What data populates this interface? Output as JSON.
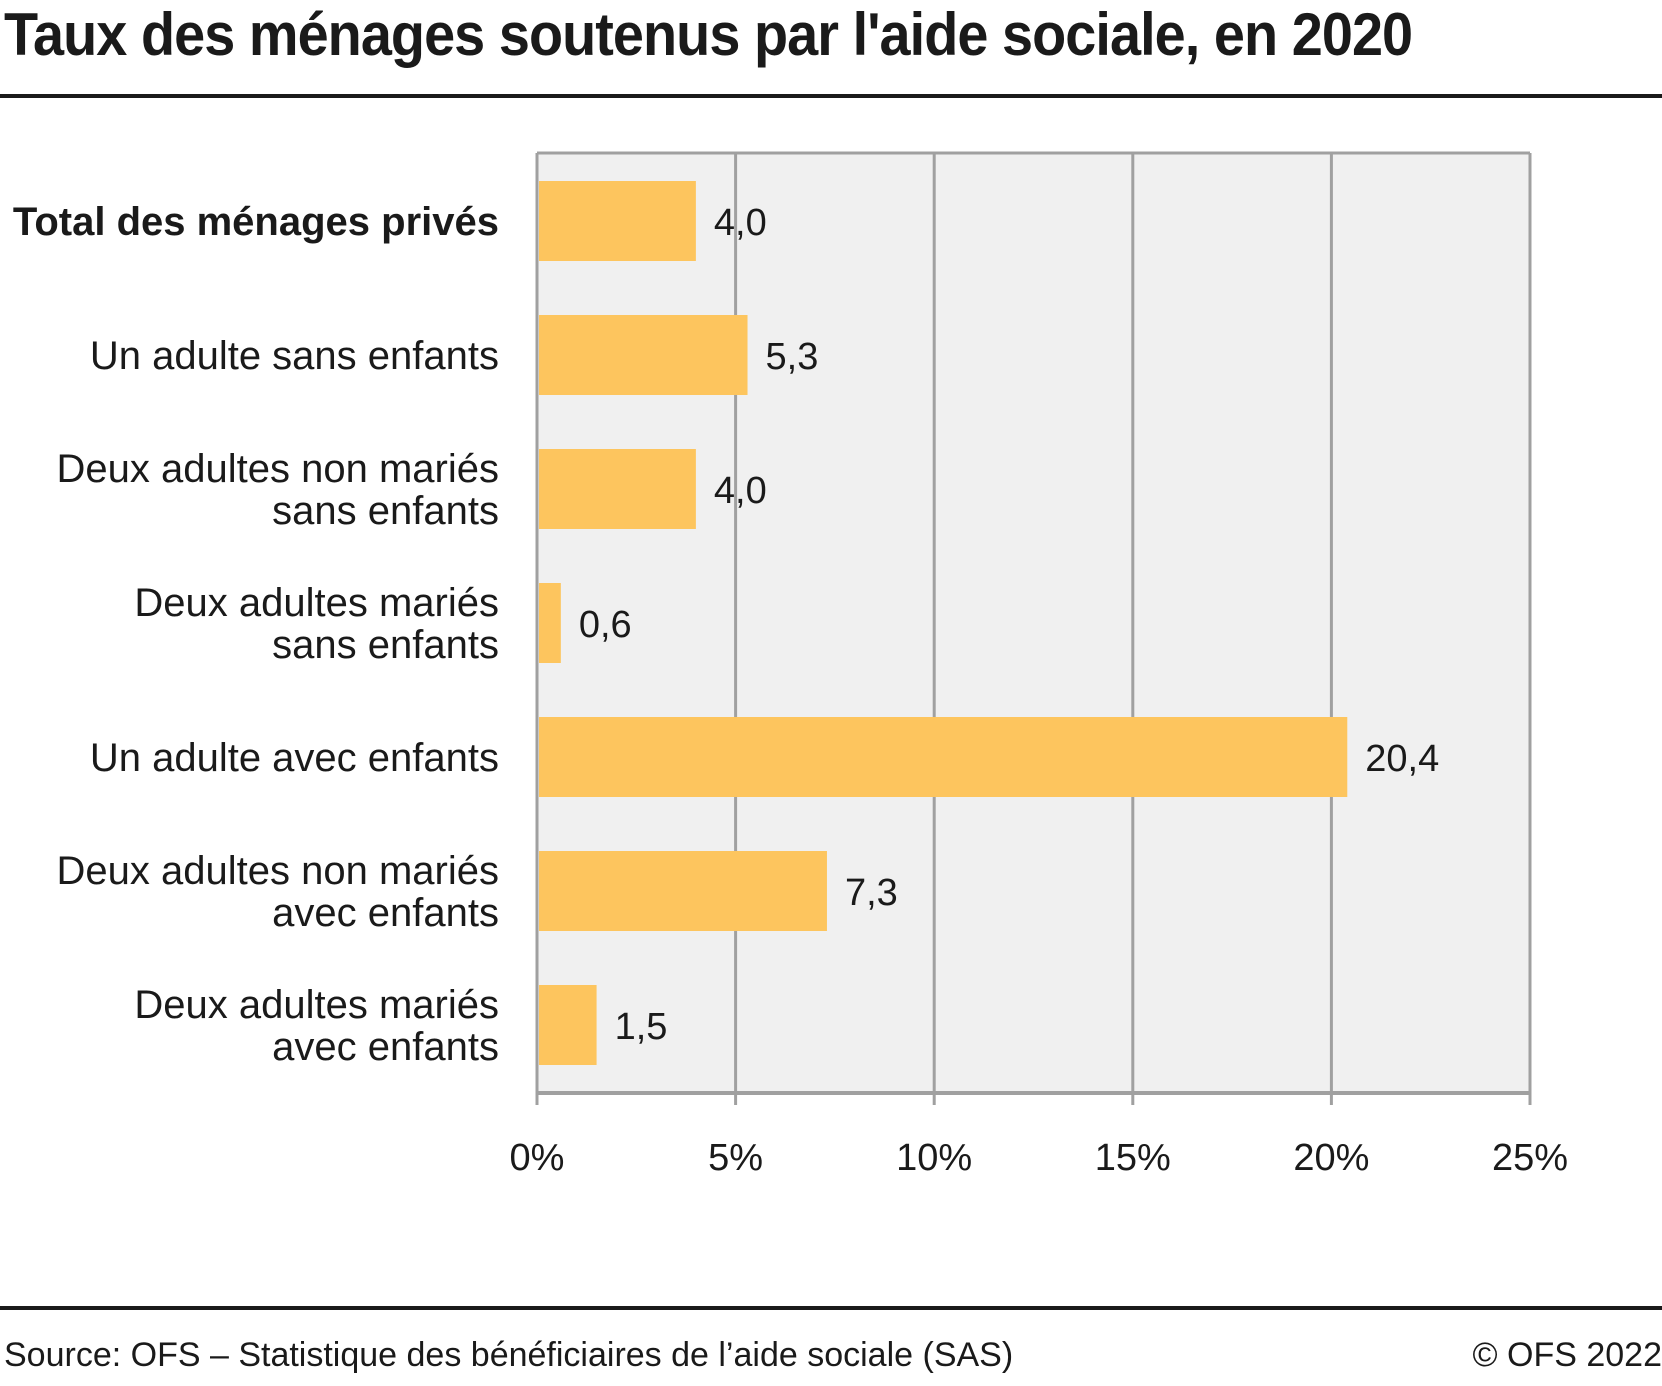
{
  "header": {
    "title": "Taux des ménages soutenus par l'aide sociale, en 2020"
  },
  "footer": {
    "source": "Source: OFS – Statistique des bénéficiaires de l’aide sociale (SAS)",
    "copyright": "© OFS 2022"
  },
  "colors": {
    "bar": "#FDC55E",
    "plot_background": "#F0F0F0",
    "grid": "#A0A0A0",
    "text": "#1A1A1A"
  },
  "chart_data": {
    "type": "bar",
    "orientation": "horizontal",
    "title": "Taux des ménages soutenus par l'aide sociale, en 2020",
    "xlabel": "",
    "ylabel": "",
    "categories": [
      [
        "Total des ménages privés"
      ],
      [
        "Un adulte sans enfants"
      ],
      [
        "Deux adultes non mariés",
        "sans enfants"
      ],
      [
        "Deux adultes mariés",
        "sans enfants"
      ],
      [
        "Un adulte avec enfants"
      ],
      [
        "Deux adultes non mariés",
        "avec enfants"
      ],
      [
        "Deux adultes mariés",
        "avec enfants"
      ]
    ],
    "bold_categories": [
      0
    ],
    "values": [
      4.0,
      5.3,
      4.0,
      0.6,
      20.4,
      7.3,
      1.5
    ],
    "value_labels": [
      "4,0",
      "5,3",
      "4,0",
      "0,6",
      "20,4",
      "7,3",
      "1,5"
    ],
    "xlim": [
      0,
      25
    ],
    "xticks": [
      0,
      5,
      10,
      15,
      20,
      25
    ],
    "xtick_labels": [
      "0%",
      "5%",
      "10%",
      "15%",
      "20%",
      "25%"
    ],
    "grid": true,
    "legend": "none"
  }
}
